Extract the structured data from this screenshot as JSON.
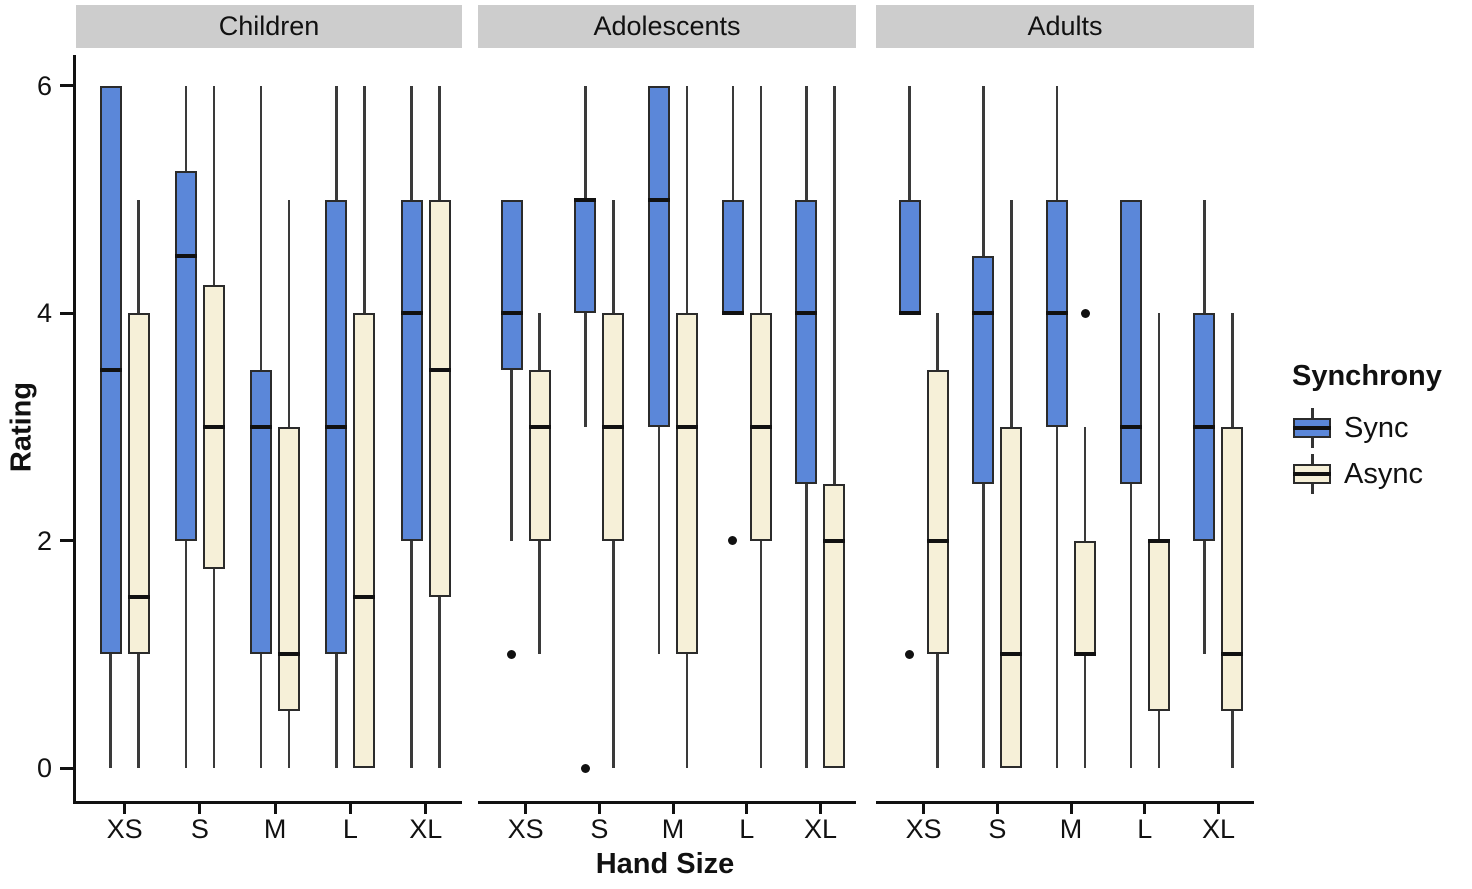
{
  "chart_data": {
    "type": "boxplot",
    "title": "",
    "xlabel": "Hand Size",
    "ylabel": "Rating",
    "ylim": [
      0,
      6
    ],
    "y_ticks": [
      0,
      2,
      4,
      6
    ],
    "categories": [
      "XS",
      "S",
      "M",
      "L",
      "XL"
    ],
    "facet_labels": [
      "Children",
      "Adolescents",
      "Adults"
    ],
    "grid": false,
    "legend": {
      "title": "Synchrony",
      "position": "right",
      "items": [
        {
          "label": "Sync",
          "color": "#5B87D9"
        },
        {
          "label": "Async",
          "color": "#F6F0D8"
        }
      ]
    },
    "style_colors": {
      "sync_fill": "#5B87D9",
      "async_fill": "#F6F0D8",
      "box_border": "#2b2b2b",
      "median": "#111111",
      "whisker": "#3a3a3a",
      "facet_strip_bg": "#CDCDCD",
      "text": "#111111"
    },
    "panels": [
      {
        "label": "Children",
        "groups": [
          {
            "category": "XS",
            "boxes": [
              {
                "series": "Sync",
                "whisker_low": 0,
                "q1": 1,
                "median": 3.5,
                "q3": 6,
                "whisker_high": 6,
                "outliers": []
              },
              {
                "series": "Async",
                "whisker_low": 0,
                "q1": 1,
                "median": 1.5,
                "q3": 4,
                "whisker_high": 5,
                "outliers": []
              }
            ]
          },
          {
            "category": "S",
            "boxes": [
              {
                "series": "Sync",
                "whisker_low": 0,
                "q1": 2,
                "median": 4.5,
                "q3": 5.25,
                "whisker_high": 6,
                "outliers": []
              },
              {
                "series": "Async",
                "whisker_low": 0,
                "q1": 1.75,
                "median": 3,
                "q3": 4.25,
                "whisker_high": 6,
                "outliers": []
              }
            ]
          },
          {
            "category": "M",
            "boxes": [
              {
                "series": "Sync",
                "whisker_low": 0,
                "q1": 1,
                "median": 3,
                "q3": 3.5,
                "whisker_high": 6,
                "outliers": []
              },
              {
                "series": "Async",
                "whisker_low": 0,
                "q1": 0.5,
                "median": 1,
                "q3": 3,
                "whisker_high": 5,
                "outliers": []
              }
            ]
          },
          {
            "category": "L",
            "boxes": [
              {
                "series": "Sync",
                "whisker_low": 0,
                "q1": 1,
                "median": 3,
                "q3": 5,
                "whisker_high": 6,
                "outliers": []
              },
              {
                "series": "Async",
                "whisker_low": 0,
                "q1": 0,
                "median": 1.5,
                "q3": 4,
                "whisker_high": 6,
                "outliers": []
              }
            ]
          },
          {
            "category": "XL",
            "boxes": [
              {
                "series": "Sync",
                "whisker_low": 0,
                "q1": 2,
                "median": 4,
                "q3": 5,
                "whisker_high": 6,
                "outliers": []
              },
              {
                "series": "Async",
                "whisker_low": 0,
                "q1": 1.5,
                "median": 3.5,
                "q3": 5,
                "whisker_high": 6,
                "outliers": []
              }
            ]
          }
        ]
      },
      {
        "label": "Adolescents",
        "groups": [
          {
            "category": "XS",
            "boxes": [
              {
                "series": "Sync",
                "whisker_low": 2,
                "q1": 3.5,
                "median": 4,
                "q3": 5,
                "whisker_high": 5,
                "outliers": [
                  1
                ]
              },
              {
                "series": "Async",
                "whisker_low": 1,
                "q1": 2,
                "median": 3,
                "q3": 3.5,
                "whisker_high": 4,
                "outliers": []
              }
            ]
          },
          {
            "category": "S",
            "boxes": [
              {
                "series": "Sync",
                "whisker_low": 3,
                "q1": 4,
                "median": 5,
                "q3": 5,
                "whisker_high": 6,
                "outliers": [
                  0
                ]
              },
              {
                "series": "Async",
                "whisker_low": 0,
                "q1": 2,
                "median": 3,
                "q3": 4,
                "whisker_high": 5,
                "outliers": []
              }
            ]
          },
          {
            "category": "M",
            "boxes": [
              {
                "series": "Sync",
                "whisker_low": 1,
                "q1": 3,
                "median": 5,
                "q3": 6,
                "whisker_high": 6,
                "outliers": []
              },
              {
                "series": "Async",
                "whisker_low": 0,
                "q1": 1,
                "median": 3,
                "q3": 4,
                "whisker_high": 6,
                "outliers": []
              }
            ]
          },
          {
            "category": "L",
            "boxes": [
              {
                "series": "Sync",
                "whisker_low": 4,
                "q1": 4,
                "median": 4,
                "q3": 5,
                "whisker_high": 6,
                "outliers": [
                  2
                ]
              },
              {
                "series": "Async",
                "whisker_low": 0,
                "q1": 2,
                "median": 3,
                "q3": 4,
                "whisker_high": 6,
                "outliers": []
              }
            ]
          },
          {
            "category": "XL",
            "boxes": [
              {
                "series": "Sync",
                "whisker_low": 0,
                "q1": 2.5,
                "median": 4,
                "q3": 5,
                "whisker_high": 6,
                "outliers": []
              },
              {
                "series": "Async",
                "whisker_low": 0,
                "q1": 0,
                "median": 2,
                "q3": 2.5,
                "whisker_high": 6,
                "outliers": []
              }
            ]
          }
        ]
      },
      {
        "label": "Adults",
        "groups": [
          {
            "category": "XS",
            "boxes": [
              {
                "series": "Sync",
                "whisker_low": 4,
                "q1": 4,
                "median": 4,
                "q3": 5,
                "whisker_high": 6,
                "outliers": [
                  1
                ]
              },
              {
                "series": "Async",
                "whisker_low": 0,
                "q1": 1,
                "median": 2,
                "q3": 3.5,
                "whisker_high": 4,
                "outliers": []
              }
            ]
          },
          {
            "category": "S",
            "boxes": [
              {
                "series": "Sync",
                "whisker_low": 0,
                "q1": 2.5,
                "median": 4,
                "q3": 4.5,
                "whisker_high": 6,
                "outliers": []
              },
              {
                "series": "Async",
                "whisker_low": 0,
                "q1": 0,
                "median": 1,
                "q3": 3,
                "whisker_high": 5,
                "outliers": []
              }
            ]
          },
          {
            "category": "M",
            "boxes": [
              {
                "series": "Sync",
                "whisker_low": 0,
                "q1": 3,
                "median": 4,
                "q3": 5,
                "whisker_high": 6,
                "outliers": []
              },
              {
                "series": "Async",
                "whisker_low": 0,
                "q1": 1,
                "median": 1,
                "q3": 2,
                "whisker_high": 3,
                "outliers": [
                  4
                ]
              }
            ]
          },
          {
            "category": "L",
            "boxes": [
              {
                "series": "Sync",
                "whisker_low": 0,
                "q1": 2.5,
                "median": 3,
                "q3": 5,
                "whisker_high": 5,
                "outliers": []
              },
              {
                "series": "Async",
                "whisker_low": 0,
                "q1": 0.5,
                "median": 2,
                "q3": 2,
                "whisker_high": 4,
                "outliers": []
              }
            ]
          },
          {
            "category": "XL",
            "boxes": [
              {
                "series": "Sync",
                "whisker_low": 1,
                "q1": 2,
                "median": 3,
                "q3": 4,
                "whisker_high": 5,
                "outliers": []
              },
              {
                "series": "Async",
                "whisker_low": 0,
                "q1": 0.5,
                "median": 1,
                "q3": 3,
                "whisker_high": 4,
                "outliers": []
              }
            ]
          }
        ]
      }
    ]
  }
}
